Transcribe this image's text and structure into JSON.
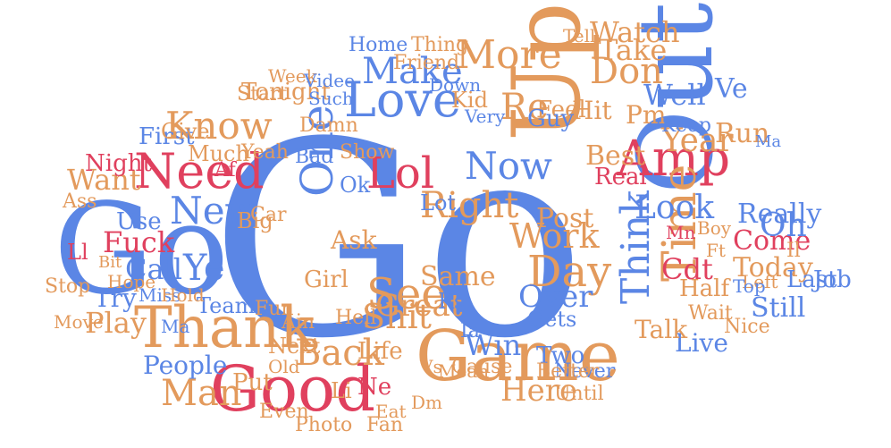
{
  "palette": {
    "blue": "#5b86e5",
    "orange": "#e39a5c",
    "red": "#e0405e"
  },
  "words": [
    {
      "text": "Go",
      "color": "blue",
      "rotate": false
    },
    {
      "text": "Go",
      "color": "blue",
      "rotate": false
    },
    {
      "text": "Up",
      "color": "orange",
      "rotate": true
    },
    {
      "text": "Out",
      "color": "blue",
      "rotate": true
    },
    {
      "text": "Game",
      "color": "orange",
      "rotate": false
    },
    {
      "text": "Good",
      "color": "red",
      "rotate": false
    },
    {
      "text": "Thank",
      "color": "orange",
      "rotate": false
    },
    {
      "text": "Need",
      "color": "red",
      "rotate": false
    },
    {
      "text": "Love",
      "color": "blue",
      "rotate": false
    },
    {
      "text": "More",
      "color": "orange",
      "rotate": false
    },
    {
      "text": "Make",
      "color": "blue",
      "rotate": false
    },
    {
      "text": "Amp",
      "color": "red",
      "rotate": false
    },
    {
      "text": "Time",
      "color": "orange",
      "rotate": true
    },
    {
      "text": "Know",
      "color": "orange",
      "rotate": false
    },
    {
      "text": "New",
      "color": "blue",
      "rotate": false
    },
    {
      "text": "Lol",
      "color": "red",
      "rotate": false
    },
    {
      "text": "One",
      "color": "blue",
      "rotate": true
    },
    {
      "text": "See",
      "color": "orange",
      "rotate": false
    },
    {
      "text": "Day",
      "color": "orange",
      "rotate": false
    },
    {
      "text": "Now",
      "color": "blue",
      "rotate": false
    },
    {
      "text": "Look",
      "color": "blue",
      "rotate": false
    },
    {
      "text": "Don",
      "color": "orange",
      "rotate": false
    },
    {
      "text": "Year",
      "color": "orange",
      "rotate": false
    },
    {
      "text": "Think",
      "color": "blue",
      "rotate": true
    },
    {
      "text": "Really",
      "color": "blue",
      "rotate": false
    },
    {
      "text": "People",
      "color": "blue",
      "rotate": false
    },
    {
      "text": "Man",
      "color": "orange",
      "rotate": false
    },
    {
      "text": "Play",
      "color": "orange",
      "rotate": false
    },
    {
      "text": "Back",
      "color": "orange",
      "rotate": false
    },
    {
      "text": "Win",
      "color": "blue",
      "rotate": false
    },
    {
      "text": "Here",
      "color": "orange",
      "rotate": false
    },
    {
      "text": "Ye",
      "color": "blue",
      "rotate": false
    },
    {
      "text": "Call",
      "color": "blue",
      "rotate": false
    },
    {
      "text": "Fuck",
      "color": "red",
      "rotate": false
    },
    {
      "text": "Want",
      "color": "orange",
      "rotate": false
    },
    {
      "text": "Right",
      "color": "orange",
      "rotate": false
    },
    {
      "text": "Work",
      "color": "orange",
      "rotate": false
    },
    {
      "text": "Re",
      "color": "orange",
      "rotate": false
    },
    {
      "text": "Best",
      "color": "orange",
      "rotate": false
    },
    {
      "text": "Well",
      "color": "blue",
      "rotate": false
    },
    {
      "text": "Today",
      "color": "orange",
      "rotate": false
    },
    {
      "text": "Come",
      "color": "red",
      "rotate": false
    },
    {
      "text": "Still",
      "color": "blue",
      "rotate": false
    },
    {
      "text": "Over",
      "color": "blue",
      "rotate": false
    },
    {
      "text": "Great",
      "color": "orange",
      "rotate": false
    },
    {
      "text": "Same",
      "color": "orange",
      "rotate": false
    },
    {
      "text": "Shit",
      "color": "orange",
      "rotate": false
    },
    {
      "text": "Watch",
      "color": "orange",
      "rotate": false
    },
    {
      "text": "Take",
      "color": "orange",
      "rotate": false
    },
    {
      "text": "Oh",
      "color": "blue",
      "rotate": false
    },
    {
      "text": "Ve",
      "color": "blue",
      "rotate": false
    },
    {
      "text": "Pm",
      "color": "orange",
      "rotate": false
    },
    {
      "text": "Run",
      "color": "orange",
      "rotate": false
    },
    {
      "text": "Team",
      "color": "blue",
      "rotate": false
    },
    {
      "text": "Cdt",
      "color": "red",
      "rotate": false
    },
    {
      "text": "Post",
      "color": "orange",
      "rotate": false
    },
    {
      "text": "Feel",
      "color": "orange",
      "rotate": false
    },
    {
      "text": "Guy",
      "color": "blue",
      "rotate": false
    },
    {
      "text": "Hit",
      "color": "orange",
      "rotate": false
    },
    {
      "text": "First",
      "color": "blue",
      "rotate": false
    },
    {
      "text": "Tonight",
      "color": "orange",
      "rotate": false
    },
    {
      "text": "Start",
      "color": "orange",
      "rotate": false
    },
    {
      "text": "Night",
      "color": "red",
      "rotate": false
    },
    {
      "text": "Use",
      "color": "blue",
      "rotate": false
    },
    {
      "text": "Put",
      "color": "orange",
      "rotate": false
    },
    {
      "text": "Girl",
      "color": "orange",
      "rotate": false
    },
    {
      "text": "Ask",
      "color": "orange",
      "rotate": false
    },
    {
      "text": "Life",
      "color": "orange",
      "rotate": false
    },
    {
      "text": "Two",
      "color": "blue",
      "rotate": false
    },
    {
      "text": "Live",
      "color": "blue",
      "rotate": false
    },
    {
      "text": "Talk",
      "color": "orange",
      "rotate": false
    },
    {
      "text": "Last",
      "color": "blue",
      "rotate": false
    },
    {
      "text": "Job",
      "color": "blue",
      "rotate": false
    },
    {
      "text": "Half",
      "color": "orange",
      "rotate": false
    },
    {
      "text": "Big",
      "color": "orange",
      "rotate": false
    },
    {
      "text": "Much",
      "color": "orange",
      "rotate": false
    },
    {
      "text": "Give",
      "color": "orange",
      "rotate": false
    },
    {
      "text": "Try",
      "color": "blue",
      "rotate": false
    },
    {
      "text": "Next",
      "color": "orange",
      "rotate": false
    },
    {
      "text": "Even",
      "color": "orange",
      "rotate": false
    },
    {
      "text": "Until",
      "color": "orange",
      "rotate": false
    },
    {
      "text": "Never",
      "color": "blue",
      "rotate": false
    },
    {
      "text": "Better",
      "color": "orange",
      "rotate": false
    },
    {
      "text": "Cause",
      "color": "orange",
      "rotate": false
    },
    {
      "text": "Nice",
      "color": "orange",
      "rotate": false
    },
    {
      "text": "Wait",
      "color": "orange",
      "rotate": false
    },
    {
      "text": "Keep",
      "color": "blue",
      "rotate": false
    },
    {
      "text": "Real",
      "color": "red",
      "rotate": false
    },
    {
      "text": "Photo",
      "color": "orange",
      "rotate": false
    },
    {
      "text": "Fan",
      "color": "orange",
      "rotate": false
    },
    {
      "text": "Miss",
      "color": "blue",
      "rotate": false
    },
    {
      "text": "Gets",
      "color": "blue",
      "rotate": false
    },
    {
      "text": "Home",
      "color": "blue",
      "rotate": false
    },
    {
      "text": "Thing",
      "color": "orange",
      "rotate": false
    },
    {
      "text": "Friend",
      "color": "orange",
      "rotate": false
    },
    {
      "text": "Kid",
      "color": "orange",
      "rotate": false
    },
    {
      "text": "Show",
      "color": "orange",
      "rotate": false
    },
    {
      "text": "Hell",
      "color": "orange",
      "rotate": false
    },
    {
      "text": "Ks",
      "color": "blue",
      "rotate": false
    },
    {
      "text": "Ok",
      "color": "blue",
      "rotate": false
    },
    {
      "text": "Lot",
      "color": "blue",
      "rotate": false
    },
    {
      "text": "Ll",
      "color": "red",
      "rotate": false
    },
    {
      "text": "Af",
      "color": "red",
      "rotate": false
    },
    {
      "text": "Ia",
      "color": "blue",
      "rotate": false
    },
    {
      "text": "Ain",
      "color": "orange",
      "rotate": false
    },
    {
      "text": "Fun",
      "color": "orange",
      "rotate": false
    },
    {
      "text": "Stop",
      "color": "orange",
      "rotate": false
    },
    {
      "text": "Car",
      "color": "orange",
      "rotate": false
    },
    {
      "text": "Hope",
      "color": "orange",
      "rotate": false
    },
    {
      "text": "Ass",
      "color": "orange",
      "rotate": false
    },
    {
      "text": "Yeah",
      "color": "orange",
      "rotate": false
    },
    {
      "text": "Bad",
      "color": "blue",
      "rotate": false
    },
    {
      "text": "Damn",
      "color": "orange",
      "rotate": false
    },
    {
      "text": "Such",
      "color": "blue",
      "rotate": false
    },
    {
      "text": "Very",
      "color": "blue",
      "rotate": false
    },
    {
      "text": "Down",
      "color": "blue",
      "rotate": false
    },
    {
      "text": "Week",
      "color": "orange",
      "rotate": false
    },
    {
      "text": "Video",
      "color": "blue",
      "rotate": false
    },
    {
      "text": "Left",
      "color": "orange",
      "rotate": false
    },
    {
      "text": "Top",
      "color": "blue",
      "rotate": false
    },
    {
      "text": "Boy",
      "color": "orange",
      "rotate": false
    },
    {
      "text": "Hold",
      "color": "orange",
      "rotate": false
    },
    {
      "text": "Move",
      "color": "orange",
      "rotate": false
    },
    {
      "text": "Old",
      "color": "orange",
      "rotate": false
    },
    {
      "text": "Li",
      "color": "orange",
      "rotate": false
    },
    {
      "text": "Ne",
      "color": "red",
      "rotate": false
    },
    {
      "text": "Eat",
      "color": "orange",
      "rotate": false
    },
    {
      "text": "Dm",
      "color": "orange",
      "rotate": false
    },
    {
      "text": "Bit",
      "color": "orange",
      "rotate": false
    },
    {
      "text": "Mn",
      "color": "red",
      "rotate": false
    },
    {
      "text": "Ma",
      "color": "blue",
      "rotate": false
    },
    {
      "text": "Ma",
      "color": "blue",
      "rotate": false
    },
    {
      "text": "Ft",
      "color": "orange",
      "rotate": false
    },
    {
      "text": "Vs",
      "color": "orange",
      "rotate": false
    },
    {
      "text": "Mean",
      "color": "orange",
      "rotate": false
    },
    {
      "text": "Tell",
      "color": "orange",
      "rotate": false
    },
    {
      "text": "Il",
      "color": "orange",
      "rotate": false
    }
  ]
}
